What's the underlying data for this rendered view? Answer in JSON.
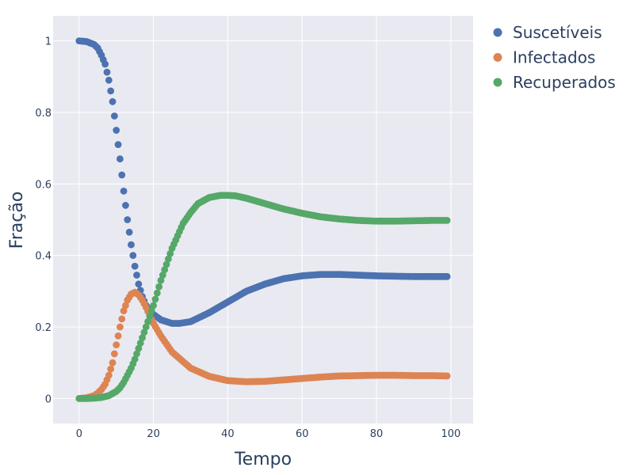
{
  "chart_data": {
    "type": "scatter",
    "xlabel": "Tempo",
    "ylabel": "Fração",
    "xlim": [
      -7,
      106
    ],
    "ylim": [
      -0.07,
      1.07
    ],
    "x_ticks": [
      0,
      20,
      40,
      60,
      80,
      100
    ],
    "y_ticks": [
      0,
      0.2,
      0.4,
      0.6,
      0.8,
      1
    ],
    "x_tick_labels": [
      "0",
      "20",
      "40",
      "60",
      "80",
      "100"
    ],
    "y_tick_labels": [
      "0",
      "0.2",
      "0.4",
      "0.6",
      "0.8",
      "1"
    ],
    "grid": true,
    "legend_position": "top-right-outside",
    "series": [
      {
        "name": "Suscetíveis",
        "color": "#4c72b0",
        "points": [
          [
            0,
            1
          ],
          [
            2,
            0.998
          ],
          [
            4,
            0.99
          ],
          [
            5,
            0.98
          ],
          [
            6,
            0.96
          ],
          [
            7,
            0.935
          ],
          [
            8,
            0.89
          ],
          [
            9,
            0.83
          ],
          [
            10,
            0.75
          ],
          [
            11,
            0.67
          ],
          [
            12,
            0.58
          ],
          [
            13,
            0.5
          ],
          [
            14,
            0.43
          ],
          [
            15,
            0.37
          ],
          [
            16,
            0.32
          ],
          [
            17,
            0.285
          ],
          [
            18,
            0.26
          ],
          [
            20,
            0.235
          ],
          [
            22,
            0.22
          ],
          [
            25,
            0.21
          ],
          [
            27,
            0.21
          ],
          [
            30,
            0.215
          ],
          [
            35,
            0.24
          ],
          [
            40,
            0.27
          ],
          [
            45,
            0.3
          ],
          [
            50,
            0.32
          ],
          [
            55,
            0.335
          ],
          [
            60,
            0.343
          ],
          [
            65,
            0.347
          ],
          [
            70,
            0.347
          ],
          [
            75,
            0.345
          ],
          [
            80,
            0.343
          ],
          [
            85,
            0.342
          ],
          [
            90,
            0.341
          ],
          [
            95,
            0.341
          ],
          [
            99,
            0.341
          ]
        ]
      },
      {
        "name": "Infectados",
        "color": "#dd8452",
        "points": [
          [
            0,
            0
          ],
          [
            2,
            0.002
          ],
          [
            4,
            0.008
          ],
          [
            5,
            0.015
          ],
          [
            6,
            0.025
          ],
          [
            7,
            0.04
          ],
          [
            8,
            0.065
          ],
          [
            9,
            0.1
          ],
          [
            10,
            0.15
          ],
          [
            11,
            0.2
          ],
          [
            12,
            0.245
          ],
          [
            13,
            0.275
          ],
          [
            14,
            0.292
          ],
          [
            15,
            0.297
          ],
          [
            16,
            0.29
          ],
          [
            17,
            0.275
          ],
          [
            18,
            0.255
          ],
          [
            20,
            0.21
          ],
          [
            22,
            0.175
          ],
          [
            25,
            0.13
          ],
          [
            30,
            0.085
          ],
          [
            35,
            0.062
          ],
          [
            40,
            0.05
          ],
          [
            45,
            0.047
          ],
          [
            50,
            0.048
          ],
          [
            55,
            0.052
          ],
          [
            60,
            0.056
          ],
          [
            65,
            0.06
          ],
          [
            70,
            0.063
          ],
          [
            75,
            0.064
          ],
          [
            80,
            0.065
          ],
          [
            85,
            0.065
          ],
          [
            90,
            0.064
          ],
          [
            95,
            0.064
          ],
          [
            99,
            0.063
          ]
        ]
      },
      {
        "name": "Recuperados",
        "color": "#55a868",
        "points": [
          [
            0,
            0
          ],
          [
            2,
            0
          ],
          [
            4,
            0.001
          ],
          [
            6,
            0.003
          ],
          [
            8,
            0.008
          ],
          [
            10,
            0.02
          ],
          [
            11,
            0.03
          ],
          [
            12,
            0.045
          ],
          [
            13,
            0.065
          ],
          [
            14,
            0.085
          ],
          [
            15,
            0.11
          ],
          [
            16,
            0.14
          ],
          [
            17,
            0.17
          ],
          [
            18,
            0.2
          ],
          [
            20,
            0.26
          ],
          [
            22,
            0.33
          ],
          [
            25,
            0.42
          ],
          [
            28,
            0.49
          ],
          [
            30,
            0.52
          ],
          [
            32,
            0.545
          ],
          [
            35,
            0.562
          ],
          [
            38,
            0.568
          ],
          [
            40,
            0.568
          ],
          [
            42,
            0.567
          ],
          [
            45,
            0.56
          ],
          [
            50,
            0.545
          ],
          [
            55,
            0.53
          ],
          [
            60,
            0.518
          ],
          [
            65,
            0.508
          ],
          [
            70,
            0.502
          ],
          [
            75,
            0.498
          ],
          [
            80,
            0.496
          ],
          [
            85,
            0.496
          ],
          [
            90,
            0.497
          ],
          [
            95,
            0.498
          ],
          [
            99,
            0.498
          ]
        ]
      }
    ]
  }
}
